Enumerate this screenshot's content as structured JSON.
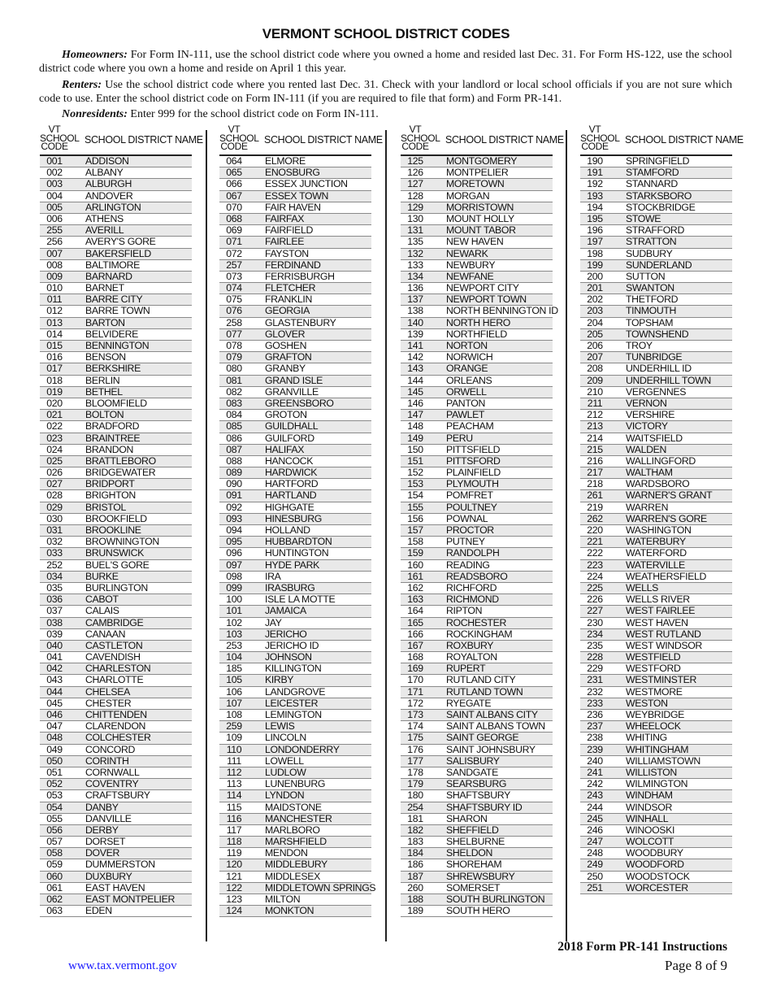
{
  "title": "VERMONT SCHOOL DISTRICT CODES",
  "paragraphs": {
    "homeowners_label": "Homeowners:",
    "homeowners_text": " For Form IN-111, use the school district code where you owned a home and resided last Dec. 31.  For Form HS-122, use the school district code where you own a home and reside on April 1 this year.",
    "renters_label": "Renters:",
    "renters_text": " Use the school district code where you rented last Dec. 31.  Check with your landlord or local school officials if you are not sure which code to use.  Enter the school district code on Form IN-111 (if you are required to file that form) and Form PR-141.",
    "nonresidents_label": "Nonresidents:",
    "nonresidents_text": " Enter 999 for the school district code on Form IN-111."
  },
  "table_header": {
    "code_line1": "VT",
    "code_line2": "SCHOOL",
    "code_line3": "CODE",
    "name": "SCHOOL DISTRICT NAME"
  },
  "shade_color": "#e9e9e9",
  "columns": [
    {
      "first_shaded": true,
      "rows": [
        [
          "001",
          "ADDISON"
        ],
        [
          "002",
          "ALBANY"
        ],
        [
          "003",
          "ALBURGH"
        ],
        [
          "004",
          "ANDOVER"
        ],
        [
          "005",
          "ARLINGTON"
        ],
        [
          "006",
          "ATHENS"
        ],
        [
          "255",
          "AVERILL"
        ],
        [
          "256",
          "AVERY'S GORE"
        ],
        [
          "007",
          "BAKERSFIELD"
        ],
        [
          "008",
          "BALTIMORE"
        ],
        [
          "009",
          "BARNARD"
        ],
        [
          "010",
          "BARNET"
        ],
        [
          "011",
          "BARRE CITY"
        ],
        [
          "012",
          "BARRE TOWN"
        ],
        [
          "013",
          "BARTON"
        ],
        [
          "014",
          "BELVIDERE"
        ],
        [
          "015",
          "BENNINGTON"
        ],
        [
          "016",
          "BENSON"
        ],
        [
          "017",
          "BERKSHIRE"
        ],
        [
          "018",
          "BERLIN"
        ],
        [
          "019",
          "BETHEL"
        ],
        [
          "020",
          "BLOOMFIELD"
        ],
        [
          "021",
          "BOLTON"
        ],
        [
          "022",
          "BRADFORD"
        ],
        [
          "023",
          "BRAINTREE"
        ],
        [
          "024",
          "BRANDON"
        ],
        [
          "025",
          "BRATTLEBORO"
        ],
        [
          "026",
          "BRIDGEWATER"
        ],
        [
          "027",
          "BRIDPORT"
        ],
        [
          "028",
          "BRIGHTON"
        ],
        [
          "029",
          "BRISTOL"
        ],
        [
          "030",
          "BROOKFIELD"
        ],
        [
          "031",
          "BROOKLINE"
        ],
        [
          "032",
          "BROWNINGTON"
        ],
        [
          "033",
          "BRUNSWICK"
        ],
        [
          "252",
          "BUEL'S GORE"
        ],
        [
          "034",
          "BURKE"
        ],
        [
          "035",
          "BURLINGTON"
        ],
        [
          "036",
          "CABOT"
        ],
        [
          "037",
          "CALAIS"
        ],
        [
          "038",
          "CAMBRIDGE"
        ],
        [
          "039",
          "CANAAN"
        ],
        [
          "040",
          "CASTLETON"
        ],
        [
          "041",
          "CAVENDISH"
        ],
        [
          "042",
          "CHARLESTON"
        ],
        [
          "043",
          "CHARLOTTE"
        ],
        [
          "044",
          "CHELSEA"
        ],
        [
          "045",
          "CHESTER"
        ],
        [
          "046",
          "CHITTENDEN"
        ],
        [
          "047",
          "CLARENDON"
        ],
        [
          "048",
          "COLCHESTER"
        ],
        [
          "049",
          "CONCORD"
        ],
        [
          "050",
          "CORINTH"
        ],
        [
          "051",
          "CORNWALL"
        ],
        [
          "052",
          "COVENTRY"
        ],
        [
          "053",
          "CRAFTSBURY"
        ],
        [
          "054",
          "DANBY"
        ],
        [
          "055",
          "DANVILLE"
        ],
        [
          "056",
          "DERBY"
        ],
        [
          "057",
          "DORSET"
        ],
        [
          "058",
          "DOVER"
        ],
        [
          "059",
          "DUMMERSTON"
        ],
        [
          "060",
          "DUXBURY"
        ],
        [
          "061",
          "EAST HAVEN"
        ],
        [
          "062",
          "EAST MONTPELIER"
        ],
        [
          "063",
          "EDEN"
        ]
      ]
    },
    {
      "first_shaded": false,
      "rows": [
        [
          "064",
          "ELMORE"
        ],
        [
          "065",
          "ENOSBURG"
        ],
        [
          "066",
          "ESSEX JUNCTION"
        ],
        [
          "067",
          "ESSEX TOWN"
        ],
        [
          "070",
          "FAIR HAVEN"
        ],
        [
          "068",
          "FAIRFAX"
        ],
        [
          "069",
          "FAIRFIELD"
        ],
        [
          "071",
          "FAIRLEE"
        ],
        [
          "072",
          "FAYSTON"
        ],
        [
          "257",
          "FERDINAND"
        ],
        [
          "073",
          "FERRISBURGH"
        ],
        [
          "074",
          "FLETCHER"
        ],
        [
          "075",
          "FRANKLIN"
        ],
        [
          "076",
          "GEORGIA"
        ],
        [
          "258",
          "GLASTENBURY"
        ],
        [
          "077",
          "GLOVER"
        ],
        [
          "078",
          "GOSHEN"
        ],
        [
          "079",
          "GRAFTON"
        ],
        [
          "080",
          "GRANBY"
        ],
        [
          "081",
          "GRAND ISLE"
        ],
        [
          "082",
          "GRANVILLE"
        ],
        [
          "083",
          "GREENSBORO"
        ],
        [
          "084",
          "GROTON"
        ],
        [
          "085",
          "GUILDHALL"
        ],
        [
          "086",
          "GUILFORD"
        ],
        [
          "087",
          "HALIFAX"
        ],
        [
          "088",
          "HANCOCK"
        ],
        [
          "089",
          "HARDWICK"
        ],
        [
          "090",
          "HARTFORD"
        ],
        [
          "091",
          "HARTLAND"
        ],
        [
          "092",
          "HIGHGATE"
        ],
        [
          "093",
          "HINESBURG"
        ],
        [
          "094",
          "HOLLAND"
        ],
        [
          "095",
          "HUBBARDTON"
        ],
        [
          "096",
          "HUNTINGTON"
        ],
        [
          "097",
          "HYDE PARK"
        ],
        [
          "098",
          "IRA"
        ],
        [
          "099",
          "IRASBURG"
        ],
        [
          "100",
          "ISLE LA MOTTE"
        ],
        [
          "101",
          "JAMAICA"
        ],
        [
          "102",
          "JAY"
        ],
        [
          "103",
          "JERICHO"
        ],
        [
          "253",
          "JERICHO ID"
        ],
        [
          "104",
          "JOHNSON"
        ],
        [
          "185",
          "KILLINGTON"
        ],
        [
          "105",
          "KIRBY"
        ],
        [
          "106",
          "LANDGROVE"
        ],
        [
          "107",
          "LEICESTER"
        ],
        [
          "108",
          "LEMINGTON"
        ],
        [
          "259",
          "LEWIS"
        ],
        [
          "109",
          "LINCOLN"
        ],
        [
          "110",
          "LONDONDERRY"
        ],
        [
          "111",
          "LOWELL"
        ],
        [
          "112",
          "LUDLOW"
        ],
        [
          "113",
          "LUNENBURG"
        ],
        [
          "114",
          "LYNDON"
        ],
        [
          "115",
          "MAIDSTONE"
        ],
        [
          "116",
          "MANCHESTER"
        ],
        [
          "117",
          "MARLBORO"
        ],
        [
          "118",
          "MARSHFIELD"
        ],
        [
          "119",
          "MENDON"
        ],
        [
          "120",
          "MIDDLEBURY"
        ],
        [
          "121",
          "MIDDLESEX"
        ],
        [
          "122",
          "MIDDLETOWN SPRINGS"
        ],
        [
          "123",
          "MILTON"
        ],
        [
          "124",
          "MONKTON"
        ]
      ]
    },
    {
      "first_shaded": true,
      "rows": [
        [
          "125",
          "MONTGOMERY"
        ],
        [
          "126",
          "MONTPELIER"
        ],
        [
          "127",
          "MORETOWN"
        ],
        [
          "128",
          "MORGAN"
        ],
        [
          "129",
          "MORRISTOWN"
        ],
        [
          "130",
          "MOUNT HOLLY"
        ],
        [
          "131",
          "MOUNT TABOR"
        ],
        [
          "135",
          "NEW HAVEN"
        ],
        [
          "132",
          "NEWARK"
        ],
        [
          "133",
          "NEWBURY"
        ],
        [
          "134",
          "NEWFANE"
        ],
        [
          "136",
          "NEWPORT CITY"
        ],
        [
          "137",
          "NEWPORT TOWN"
        ],
        [
          "138",
          "NORTH BENNINGTON ID"
        ],
        [
          "140",
          "NORTH HERO"
        ],
        [
          "139",
          "NORTHFIELD"
        ],
        [
          "141",
          "NORTON"
        ],
        [
          "142",
          "NORWICH"
        ],
        [
          "143",
          "ORANGE"
        ],
        [
          "144",
          "ORLEANS"
        ],
        [
          "145",
          "ORWELL"
        ],
        [
          "146",
          "PANTON"
        ],
        [
          "147",
          "PAWLET"
        ],
        [
          "148",
          "PEACHAM"
        ],
        [
          "149",
          "PERU"
        ],
        [
          "150",
          "PITTSFIELD"
        ],
        [
          "151",
          "PITTSFORD"
        ],
        [
          "152",
          "PLAINFIELD"
        ],
        [
          "153",
          "PLYMOUTH"
        ],
        [
          "154",
          "POMFRET"
        ],
        [
          "155",
          "POULTNEY"
        ],
        [
          "156",
          "POWNAL"
        ],
        [
          "157",
          "PROCTOR"
        ],
        [
          "158",
          "PUTNEY"
        ],
        [
          "159",
          "RANDOLPH"
        ],
        [
          "160",
          "READING"
        ],
        [
          "161",
          "READSBORO"
        ],
        [
          "162",
          "RICHFORD"
        ],
        [
          "163",
          "RICHMOND"
        ],
        [
          "164",
          "RIPTON"
        ],
        [
          "165",
          "ROCHESTER"
        ],
        [
          "166",
          "ROCKINGHAM"
        ],
        [
          "167",
          "ROXBURY"
        ],
        [
          "168",
          "ROYALTON"
        ],
        [
          "169",
          "RUPERT"
        ],
        [
          "170",
          "RUTLAND CITY"
        ],
        [
          "171",
          "RUTLAND TOWN"
        ],
        [
          "172",
          "RYEGATE"
        ],
        [
          "173",
          "SAINT ALBANS CITY"
        ],
        [
          "174",
          "SAINT ALBANS TOWN"
        ],
        [
          "175",
          "SAINT GEORGE"
        ],
        [
          "176",
          "SAINT JOHNSBURY"
        ],
        [
          "177",
          "SALISBURY"
        ],
        [
          "178",
          "SANDGATE"
        ],
        [
          "179",
          "SEARSBURG"
        ],
        [
          "180",
          "SHAFTSBURY"
        ],
        [
          "254",
          "SHAFTSBURY ID"
        ],
        [
          "181",
          "SHARON"
        ],
        [
          "182",
          "SHEFFIELD"
        ],
        [
          "183",
          "SHELBURNE"
        ],
        [
          "184",
          "SHELDON"
        ],
        [
          "186",
          "SHOREHAM"
        ],
        [
          "187",
          "SHREWSBURY"
        ],
        [
          "260",
          "SOMERSET"
        ],
        [
          "188",
          "SOUTH BURLINGTON"
        ],
        [
          "189",
          "SOUTH HERO"
        ]
      ]
    },
    {
      "first_shaded": false,
      "rows": [
        [
          "190",
          "SPRINGFIELD"
        ],
        [
          "191",
          "STAMFORD"
        ],
        [
          "192",
          "STANNARD"
        ],
        [
          "193",
          "STARKSBORO"
        ],
        [
          "194",
          "STOCKBRIDGE"
        ],
        [
          "195",
          "STOWE"
        ],
        [
          "196",
          "STRAFFORD"
        ],
        [
          "197",
          "STRATTON"
        ],
        [
          "198",
          "SUDBURY"
        ],
        [
          "199",
          "SUNDERLAND"
        ],
        [
          "200",
          "SUTTON"
        ],
        [
          "201",
          "SWANTON"
        ],
        [
          "202",
          "THETFORD"
        ],
        [
          "203",
          "TINMOUTH"
        ],
        [
          "204",
          "TOPSHAM"
        ],
        [
          "205",
          "TOWNSHEND"
        ],
        [
          "206",
          "TROY"
        ],
        [
          "207",
          "TUNBRIDGE"
        ],
        [
          "208",
          "UNDERHILL ID"
        ],
        [
          "209",
          "UNDERHILL TOWN"
        ],
        [
          "210",
          "VERGENNES"
        ],
        [
          "211",
          "VERNON"
        ],
        [
          "212",
          "VERSHIRE"
        ],
        [
          "213",
          "VICTORY"
        ],
        [
          "214",
          "WAITSFIELD"
        ],
        [
          "215",
          "WALDEN"
        ],
        [
          "216",
          "WALLINGFORD"
        ],
        [
          "217",
          "WALTHAM"
        ],
        [
          "218",
          "WARDSBORO"
        ],
        [
          "261",
          "WARNER'S GRANT"
        ],
        [
          "219",
          "WARREN"
        ],
        [
          "262",
          "WARREN'S GORE"
        ],
        [
          "220",
          "WASHINGTON"
        ],
        [
          "221",
          "WATERBURY"
        ],
        [
          "222",
          "WATERFORD"
        ],
        [
          "223",
          "WATERVILLE"
        ],
        [
          "224",
          "WEATHERSFIELD"
        ],
        [
          "225",
          "WELLS"
        ],
        [
          "226",
          "WELLS RIVER"
        ],
        [
          "227",
          "WEST FAIRLEE"
        ],
        [
          "230",
          "WEST HAVEN"
        ],
        [
          "234",
          "WEST RUTLAND"
        ],
        [
          "235",
          "WEST WINDSOR"
        ],
        [
          "228",
          "WESTFIELD"
        ],
        [
          "229",
          "WESTFORD"
        ],
        [
          "231",
          "WESTMINSTER"
        ],
        [
          "232",
          "WESTMORE"
        ],
        [
          "233",
          "WESTON"
        ],
        [
          "236",
          "WEYBRIDGE"
        ],
        [
          "237",
          "WHEELOCK"
        ],
        [
          "238",
          "WHITING"
        ],
        [
          "239",
          "WHITINGHAM"
        ],
        [
          "240",
          "WILLIAMSTOWN"
        ],
        [
          "241",
          "WILLISTON"
        ],
        [
          "242",
          "WILMINGTON"
        ],
        [
          "243",
          "WINDHAM"
        ],
        [
          "244",
          "WINDSOR"
        ],
        [
          "245",
          "WINHALL"
        ],
        [
          "246",
          "WINOOSKI"
        ],
        [
          "247",
          "WOLCOTT"
        ],
        [
          "248",
          "WOODBURY"
        ],
        [
          "249",
          "WOODFORD"
        ],
        [
          "250",
          "WOODSTOCK"
        ],
        [
          "251",
          "WORCESTER"
        ]
      ]
    }
  ],
  "footer": {
    "url": "www.tax.vermont.gov",
    "url_color": "#1a1aff",
    "form_title": "2018 Form PR-141 Instructions",
    "page": "Page 8 of 9"
  }
}
